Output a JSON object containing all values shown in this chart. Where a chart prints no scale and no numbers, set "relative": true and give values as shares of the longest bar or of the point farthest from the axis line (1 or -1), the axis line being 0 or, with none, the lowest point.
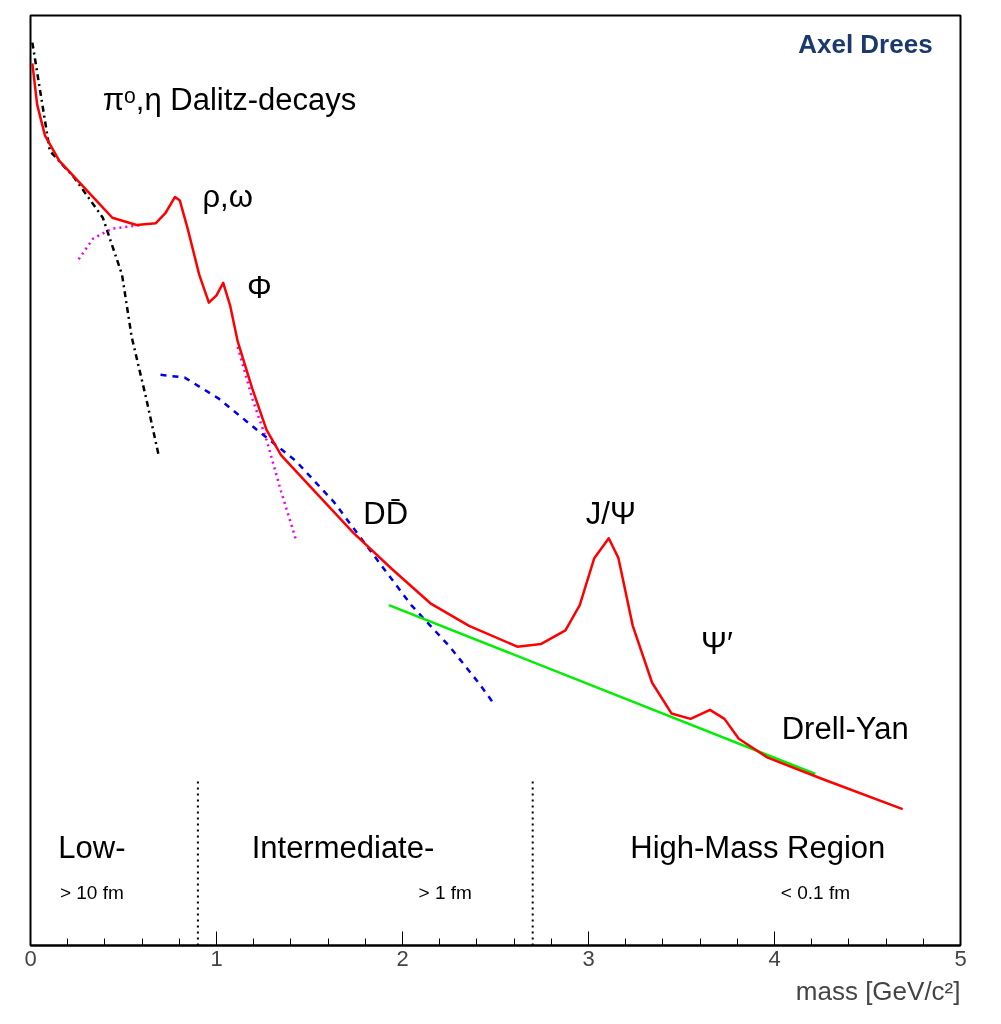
{
  "chart_data": {
    "type": "line",
    "relative": true,
    "xlabel": "mass [GeV/c²]",
    "xlim": [
      0,
      5
    ],
    "xticks": [
      0,
      1,
      2,
      3,
      4,
      5
    ],
    "grid": false,
    "marker": "none",
    "series": [
      {
        "color": "#000000",
        "line_style": "dashdot",
        "x": [
          0.01,
          0.104,
          0.233,
          0.389,
          0.492,
          0.544,
          0.622,
          0.689
        ],
        "values": [
          1.0,
          0.88,
          0.851,
          0.806,
          0.743,
          0.674,
          0.606,
          0.543
        ]
      },
      {
        "color": "#ee00ee",
        "line_style": "dotted",
        "x": [
          0.259,
          0.337,
          0.44,
          0.596
        ],
        "values": [
          0.76,
          0.783,
          0.794,
          0.798
        ]
      },
      {
        "color": "#ee00ee",
        "line_style": "dotted",
        "x": [
          1.114,
          1.192,
          1.269,
          1.347,
          1.425
        ],
        "values": [
          0.663,
          0.606,
          0.56,
          0.503,
          0.451
        ]
      },
      {
        "color": "#0000ee",
        "line_style": "dashed",
        "x": [
          0.699,
          0.829,
          1.01,
          1.218,
          1.425,
          1.632,
          1.839,
          2.047,
          2.254,
          2.409,
          2.487
        ],
        "values": [
          0.632,
          0.629,
          0.606,
          0.571,
          0.537,
          0.491,
          0.434,
          0.377,
          0.331,
          0.291,
          0.269
        ]
      },
      {
        "color": "#00ee00",
        "line_style": "solid",
        "x": [
          1.927,
          4.22
        ],
        "values": [
          0.377,
          0.19
        ]
      },
      {
        "color": "#ff0000",
        "line_style": "solid",
        "x": [
          0.01,
          0.036,
          0.078,
          0.155,
          0.259,
          0.363,
          0.44,
          0.57,
          0.674,
          0.725,
          0.777,
          0.803,
          0.845,
          0.907,
          0.959,
          1.0,
          1.036,
          1.073,
          1.114,
          1.192,
          1.269,
          1.347,
          1.528,
          1.736,
          1.943,
          2.15,
          2.358,
          2.617,
          2.746,
          2.876,
          2.953,
          3.031,
          3.109,
          3.161,
          3.238,
          3.342,
          3.446,
          3.549,
          3.653,
          3.731,
          3.808,
          3.964,
          4.275,
          4.689
        ],
        "values": [
          0.977,
          0.931,
          0.897,
          0.869,
          0.846,
          0.823,
          0.806,
          0.798,
          0.8,
          0.811,
          0.829,
          0.825,
          0.794,
          0.743,
          0.712,
          0.72,
          0.734,
          0.709,
          0.669,
          0.617,
          0.571,
          0.543,
          0.503,
          0.457,
          0.417,
          0.379,
          0.354,
          0.331,
          0.334,
          0.349,
          0.377,
          0.429,
          0.451,
          0.429,
          0.354,
          0.291,
          0.257,
          0.251,
          0.261,
          0.251,
          0.229,
          0.208,
          0.183,
          0.151
        ]
      }
    ],
    "ref_lines": [
      {
        "axis": "x",
        "value": 0.9,
        "color": "#000000",
        "line_style": "dotted"
      },
      {
        "axis": "x",
        "value": 2.7,
        "color": "#000000",
        "line_style": "dotted"
      }
    ],
    "annotations": [
      "Axel Drees",
      "πᵒ,η Dalitz-decays",
      "ρ,ω",
      "Φ",
      "DD̄",
      "J/Ψ",
      "Ψ′",
      "Drell-Yan",
      "Low-",
      "> 10 fm",
      "Intermediate-",
      "> 1 fm",
      "High-Mass Region",
      "< 0.1 fm"
    ]
  }
}
